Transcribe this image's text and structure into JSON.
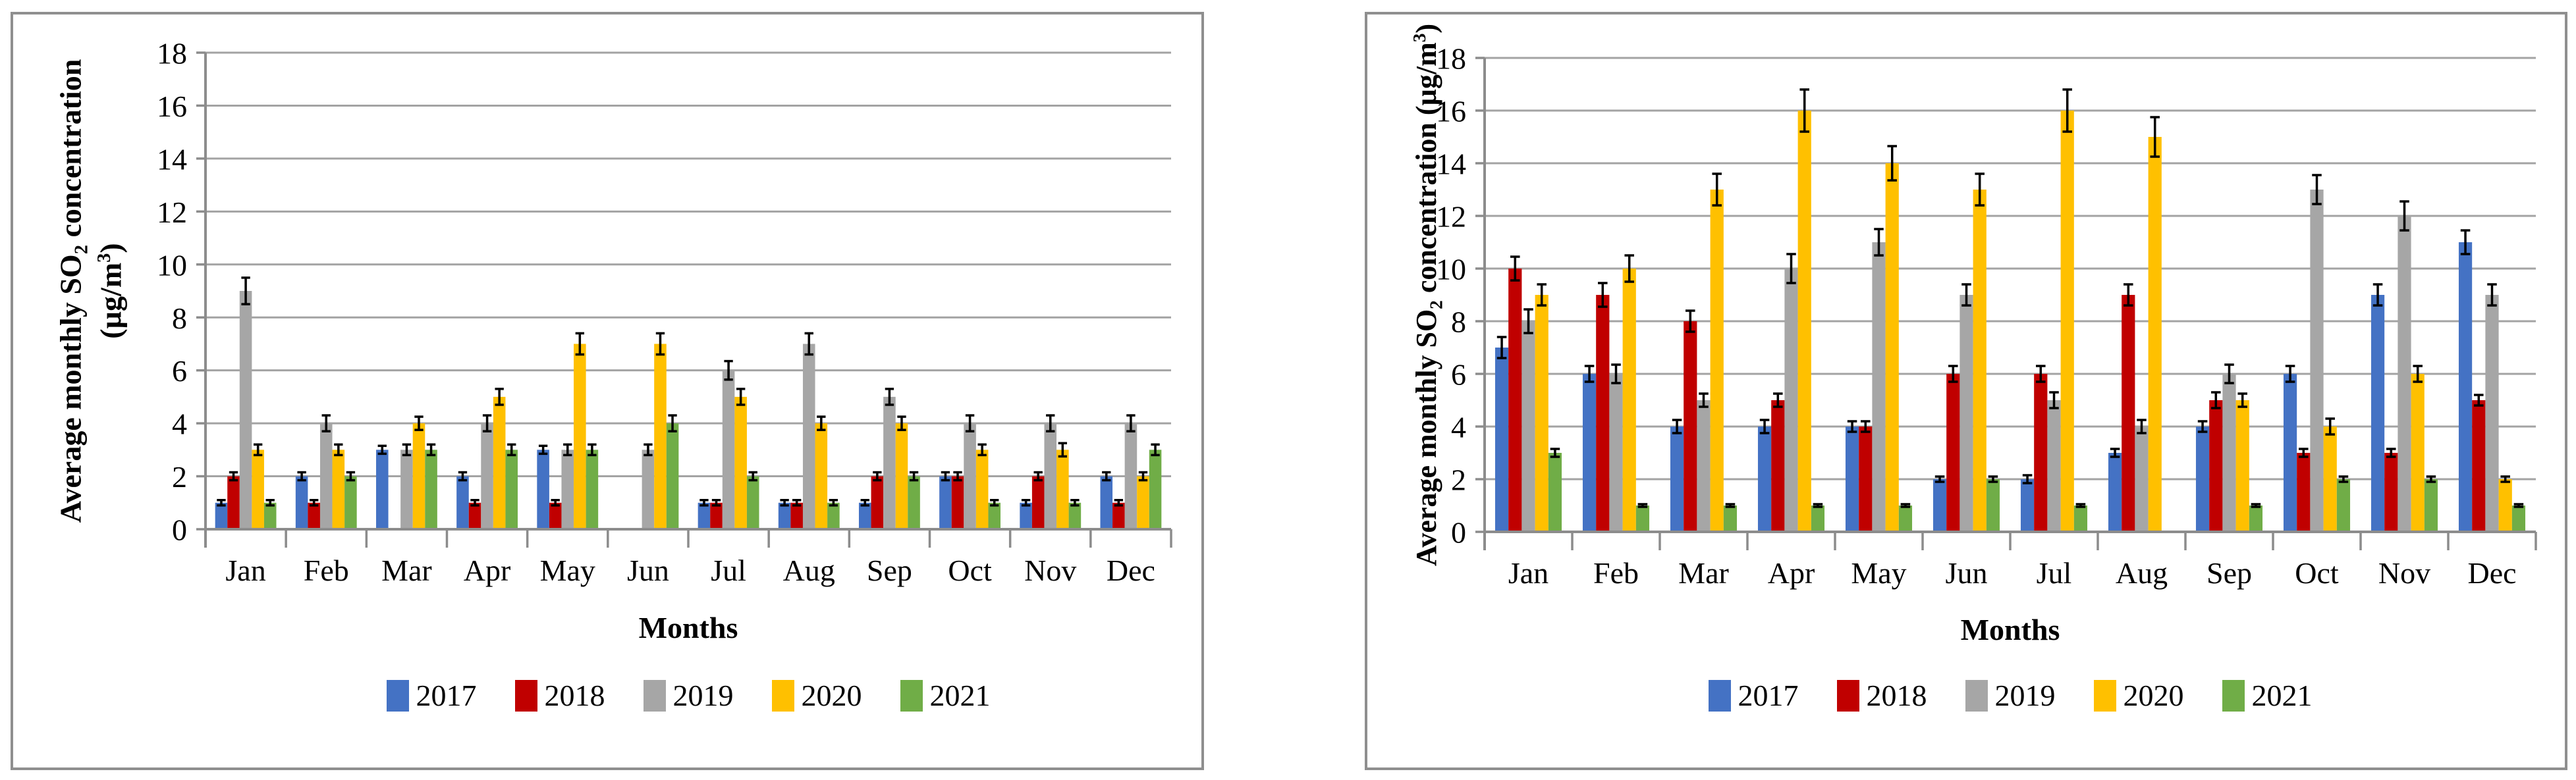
{
  "figure": {
    "background": "#ffffff",
    "panel_border_color": "#8f8f8f",
    "gridline_color": "#a3a3a3",
    "axis_color": "#8c8c8c",
    "error_bar_color": "#000000"
  },
  "chart_data": [
    {
      "type": "bar",
      "title": "",
      "ylabel": "Average monthly SO2 concentration (ug/m3)",
      "ylabel_parts": {
        "l1a": "Average monthly SO",
        "l1sub": "2",
        "l1b": " concentration",
        "l2a": "(µg/m",
        "l2sup": "3",
        "l2b": ")"
      },
      "xlabel": "Months",
      "ylim": [
        0,
        18
      ],
      "yticks": [
        "0",
        "2",
        "4",
        "6",
        "8",
        "10",
        "12",
        "14",
        "16",
        "18"
      ],
      "grid": true,
      "legend_position": "bottom",
      "error_bars": true,
      "categories": [
        "Jan",
        "Feb",
        "Mar",
        "Apr",
        "May",
        "Jun",
        "Jul",
        "Aug",
        "Sep",
        "Oct",
        "Nov",
        "Dec"
      ],
      "series": [
        {
          "name": "2017",
          "color": "#4472C4",
          "values": [
            1,
            2,
            3,
            2,
            3,
            0,
            1,
            1,
            1,
            2,
            1,
            2
          ],
          "errors": [
            0.1,
            0.15,
            0.15,
            0.15,
            0.15,
            0,
            0.1,
            0.1,
            0.1,
            0.15,
            0.1,
            0.15
          ]
        },
        {
          "name": "2018",
          "color": "#C00000",
          "values": [
            2,
            1,
            0,
            1,
            1,
            0,
            1,
            1,
            2,
            2,
            2,
            1
          ],
          "errors": [
            0.15,
            0.1,
            0,
            0.1,
            0.1,
            0,
            0.1,
            0.1,
            0.15,
            0.15,
            0.15,
            0.1
          ]
        },
        {
          "name": "2019",
          "color": "#A6A6A6",
          "values": [
            9,
            4,
            3,
            4,
            3,
            3,
            6,
            7,
            5,
            4,
            4,
            4
          ],
          "errors": [
            0.5,
            0.3,
            0.2,
            0.3,
            0.2,
            0.2,
            0.35,
            0.4,
            0.3,
            0.3,
            0.3,
            0.3
          ]
        },
        {
          "name": "2020",
          "color": "#FFC000",
          "values": [
            3,
            3,
            4,
            5,
            7,
            7,
            5,
            4,
            4,
            3,
            3,
            2
          ],
          "errors": [
            0.2,
            0.2,
            0.25,
            0.3,
            0.4,
            0.4,
            0.3,
            0.25,
            0.25,
            0.2,
            0.25,
            0.15
          ]
        },
        {
          "name": "2021",
          "color": "#70AD47",
          "values": [
            1,
            2,
            3,
            3,
            3,
            4,
            2,
            1,
            2,
            1,
            1,
            3
          ],
          "errors": [
            0.1,
            0.15,
            0.2,
            0.2,
            0.2,
            0.3,
            0.15,
            0.1,
            0.15,
            0.1,
            0.1,
            0.2
          ]
        }
      ]
    },
    {
      "type": "bar",
      "title": "",
      "ylabel": "Average monthly SO2 concentration (ug/m3)",
      "ylabel_parts": {
        "a": "Average monthly SO",
        "sub": "2",
        "b": " concentration (µg/m",
        "sup": "3",
        "c": ")"
      },
      "xlabel": "Months",
      "ylim": [
        0,
        18
      ],
      "yticks": [
        "0",
        "2",
        "4",
        "6",
        "8",
        "10",
        "12",
        "14",
        "16",
        "18"
      ],
      "grid": true,
      "legend_position": "bottom",
      "error_bars": true,
      "categories": [
        "Jan",
        "Feb",
        "Mar",
        "Apr",
        "May",
        "Jun",
        "Jul",
        "Aug",
        "Sep",
        "Oct",
        "Nov",
        "Dec"
      ],
      "series": [
        {
          "name": "2017",
          "color": "#4472C4",
          "values": [
            7,
            6,
            4,
            4,
            4,
            2,
            2,
            3,
            4,
            6,
            9,
            11
          ],
          "errors": [
            0.4,
            0.3,
            0.25,
            0.25,
            0.2,
            0.1,
            0.15,
            0.15,
            0.2,
            0.3,
            0.4,
            0.45
          ]
        },
        {
          "name": "2018",
          "color": "#C00000",
          "values": [
            10,
            9,
            8,
            5,
            4,
            6,
            6,
            9,
            5,
            3,
            3,
            5
          ],
          "errors": [
            0.45,
            0.45,
            0.4,
            0.25,
            0.2,
            0.3,
            0.3,
            0.4,
            0.3,
            0.15,
            0.15,
            0.2
          ]
        },
        {
          "name": "2019",
          "color": "#A6A6A6",
          "values": [
            8,
            6,
            5,
            10,
            11,
            9,
            5,
            4,
            6,
            13,
            12,
            9
          ],
          "errors": [
            0.45,
            0.35,
            0.25,
            0.55,
            0.5,
            0.4,
            0.3,
            0.25,
            0.35,
            0.55,
            0.55,
            0.4
          ]
        },
        {
          "name": "2020",
          "color": "#FFC000",
          "values": [
            9,
            10,
            13,
            16,
            14,
            13,
            16,
            15,
            5,
            4,
            6,
            2
          ],
          "errors": [
            0.4,
            0.5,
            0.6,
            0.8,
            0.65,
            0.6,
            0.8,
            0.75,
            0.25,
            0.3,
            0.3,
            0.1
          ]
        },
        {
          "name": "2021",
          "color": "#70AD47",
          "values": [
            3,
            1,
            1,
            1,
            1,
            2,
            1,
            0,
            1,
            2,
            2,
            1
          ],
          "errors": [
            0.15,
            0.05,
            0.05,
            0.05,
            0.05,
            0.1,
            0.05,
            0,
            0.05,
            0.1,
            0.1,
            0.05
          ]
        }
      ]
    }
  ]
}
